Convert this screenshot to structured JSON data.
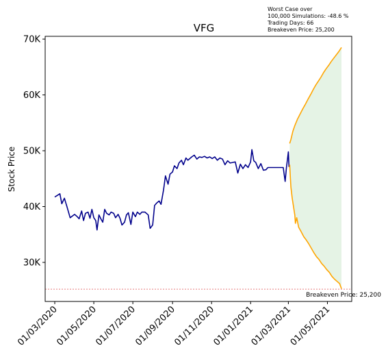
{
  "chart_data": {
    "type": "line",
    "title": "VFG",
    "xlabel": "",
    "ylabel": "Stock Price",
    "ylim": [
      23000,
      70500
    ],
    "yticks": [
      30000,
      40000,
      50000,
      60000,
      70000
    ],
    "ytick_labels": [
      "30K",
      "40K",
      "50K",
      "60K",
      "70K"
    ],
    "xlim": [
      "2020-02-15",
      "2021-06-08"
    ],
    "xticks": [
      "2020-03-01",
      "2020-05-01",
      "2020-07-01",
      "2020-09-01",
      "2020-11-01",
      "2021-01-01",
      "2021-03-01",
      "2021-05-01"
    ],
    "xtick_labels": [
      "01/03/2020",
      "01/05/2020",
      "01/07/2020",
      "01/09/2020",
      "01/11/2020",
      "01/01/2021",
      "01/03/2021",
      "01/05/2021"
    ],
    "annotation_lines": [
      "Worst Case over",
      "100,000 Simulations: -48.6 %",
      "Trading Days: 66",
      "Breakeven Price: 25,200"
    ],
    "breakeven": {
      "value": 25200,
      "label": "Breakeven Price: 25,200",
      "color": "#d62728"
    },
    "series": [
      {
        "color": "#00008b",
        "points": [
          [
            "2020-03-01",
            41700
          ],
          [
            "2020-03-05",
            42000
          ],
          [
            "2020-03-09",
            42300
          ],
          [
            "2020-03-12",
            40500
          ],
          [
            "2020-03-16",
            41500
          ],
          [
            "2020-03-20",
            40000
          ],
          [
            "2020-03-25",
            38000
          ],
          [
            "2020-04-01",
            38600
          ],
          [
            "2020-04-05",
            38200
          ],
          [
            "2020-04-08",
            37800
          ],
          [
            "2020-04-12",
            39200
          ],
          [
            "2020-04-15",
            37500
          ],
          [
            "2020-04-18",
            38800
          ],
          [
            "2020-04-22",
            39000
          ],
          [
            "2020-04-25",
            37900
          ],
          [
            "2020-04-28",
            39500
          ],
          [
            "2020-05-01",
            38000
          ],
          [
            "2020-05-04",
            37500
          ],
          [
            "2020-05-06",
            35800
          ],
          [
            "2020-05-09",
            38500
          ],
          [
            "2020-05-12",
            37800
          ],
          [
            "2020-05-15",
            37200
          ],
          [
            "2020-05-18",
            39500
          ],
          [
            "2020-05-21",
            38800
          ],
          [
            "2020-05-25",
            38500
          ],
          [
            "2020-05-28",
            39000
          ],
          [
            "2020-06-01",
            38800
          ],
          [
            "2020-06-04",
            38000
          ],
          [
            "2020-06-08",
            38600
          ],
          [
            "2020-06-11",
            37900
          ],
          [
            "2020-06-14",
            36700
          ],
          [
            "2020-06-18",
            37200
          ],
          [
            "2020-06-21",
            38500
          ],
          [
            "2020-06-24",
            38900
          ],
          [
            "2020-06-28",
            36800
          ],
          [
            "2020-07-01",
            39000
          ],
          [
            "2020-07-05",
            38200
          ],
          [
            "2020-07-08",
            39000
          ],
          [
            "2020-07-12",
            38600
          ],
          [
            "2020-07-15",
            39000
          ],
          [
            "2020-07-20",
            39000
          ],
          [
            "2020-07-25",
            38500
          ],
          [
            "2020-07-28",
            36100
          ],
          [
            "2020-08-01",
            36700
          ],
          [
            "2020-08-04",
            40200
          ],
          [
            "2020-08-07",
            40600
          ],
          [
            "2020-08-11",
            41000
          ],
          [
            "2020-08-14",
            40400
          ],
          [
            "2020-08-18",
            43000
          ],
          [
            "2020-08-21",
            45500
          ],
          [
            "2020-08-25",
            44000
          ],
          [
            "2020-08-28",
            45800
          ],
          [
            "2020-09-01",
            46200
          ],
          [
            "2020-09-04",
            47300
          ],
          [
            "2020-09-08",
            46800
          ],
          [
            "2020-09-11",
            47800
          ],
          [
            "2020-09-15",
            48300
          ],
          [
            "2020-09-18",
            47500
          ],
          [
            "2020-09-22",
            48700
          ],
          [
            "2020-09-25",
            48300
          ],
          [
            "2020-10-01",
            48900
          ],
          [
            "2020-10-05",
            49200
          ],
          [
            "2020-10-09",
            48500
          ],
          [
            "2020-10-13",
            48900
          ],
          [
            "2020-10-17",
            48800
          ],
          [
            "2020-10-21",
            49000
          ],
          [
            "2020-10-25",
            48700
          ],
          [
            "2020-10-29",
            48900
          ],
          [
            "2020-11-02",
            48600
          ],
          [
            "2020-11-06",
            48900
          ],
          [
            "2020-11-10",
            48300
          ],
          [
            "2020-11-14",
            48700
          ],
          [
            "2020-11-18",
            48500
          ],
          [
            "2020-11-22",
            47500
          ],
          [
            "2020-11-26",
            48200
          ],
          [
            "2020-11-30",
            47800
          ],
          [
            "2020-12-04",
            47900
          ],
          [
            "2020-12-08",
            48000
          ],
          [
            "2020-12-12",
            46000
          ],
          [
            "2020-12-16",
            47600
          ],
          [
            "2020-12-20",
            46800
          ],
          [
            "2020-12-24",
            47500
          ],
          [
            "2020-12-28",
            47000
          ],
          [
            "2021-01-01",
            48000
          ],
          [
            "2021-01-03",
            50200
          ],
          [
            "2021-01-06",
            48200
          ],
          [
            "2021-01-09",
            47900
          ],
          [
            "2021-01-13",
            46800
          ],
          [
            "2021-01-17",
            47700
          ],
          [
            "2021-01-21",
            46500
          ],
          [
            "2021-01-25",
            46600
          ],
          [
            "2021-01-28",
            47000
          ],
          [
            "2021-02-03",
            47000
          ],
          [
            "2021-02-10",
            47000
          ],
          [
            "2021-02-17",
            47000
          ],
          [
            "2021-02-21",
            47000
          ],
          [
            "2021-02-24",
            44500
          ],
          [
            "2021-02-26",
            47000
          ],
          [
            "2021-03-01",
            49800
          ],
          [
            "2021-03-02",
            47100
          ]
        ]
      },
      {
        "color": "#ffa500",
        "points": [
          [
            "2021-03-03",
            51300
          ],
          [
            "2021-03-05",
            52000
          ],
          [
            "2021-03-08",
            53500
          ],
          [
            "2021-03-11",
            54500
          ],
          [
            "2021-03-15",
            55600
          ],
          [
            "2021-03-19",
            56500
          ],
          [
            "2021-03-23",
            57400
          ],
          [
            "2021-03-27",
            58200
          ],
          [
            "2021-04-01",
            59300
          ],
          [
            "2021-04-05",
            60100
          ],
          [
            "2021-04-09",
            61000
          ],
          [
            "2021-04-13",
            61800
          ],
          [
            "2021-04-17",
            62500
          ],
          [
            "2021-04-21",
            63200
          ],
          [
            "2021-04-25",
            64000
          ],
          [
            "2021-04-29",
            64700
          ],
          [
            "2021-05-03",
            65300
          ],
          [
            "2021-05-07",
            66000
          ],
          [
            "2021-05-11",
            66600
          ],
          [
            "2021-05-15",
            67200
          ],
          [
            "2021-05-19",
            67800
          ],
          [
            "2021-05-23",
            68500
          ]
        ]
      },
      {
        "color": "#ffa500",
        "points": [
          [
            "2021-03-03",
            47500
          ],
          [
            "2021-03-05",
            43500
          ],
          [
            "2021-03-07",
            41500
          ],
          [
            "2021-03-09",
            40000
          ],
          [
            "2021-03-11",
            38500
          ],
          [
            "2021-03-12",
            37000
          ],
          [
            "2021-03-14",
            38000
          ],
          [
            "2021-03-17",
            36300
          ],
          [
            "2021-03-21",
            35500
          ],
          [
            "2021-03-25",
            34600
          ],
          [
            "2021-03-29",
            34000
          ],
          [
            "2021-04-02",
            33300
          ],
          [
            "2021-04-06",
            32500
          ],
          [
            "2021-04-10",
            31700
          ],
          [
            "2021-04-14",
            31000
          ],
          [
            "2021-04-18",
            30500
          ],
          [
            "2021-04-22",
            29800
          ],
          [
            "2021-04-26",
            29300
          ],
          [
            "2021-04-30",
            28700
          ],
          [
            "2021-05-04",
            28200
          ],
          [
            "2021-05-08",
            27500
          ],
          [
            "2021-05-12",
            27000
          ],
          [
            "2021-05-16",
            26600
          ],
          [
            "2021-05-20",
            26200
          ],
          [
            "2021-05-23",
            25300
          ]
        ]
      }
    ]
  }
}
